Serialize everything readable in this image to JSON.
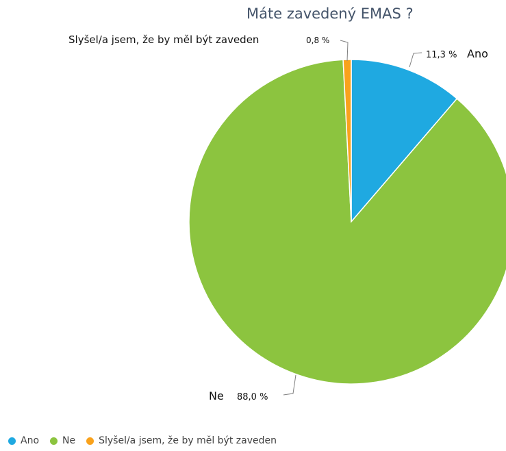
{
  "chart_data": {
    "type": "pie",
    "title": "Máte zavedený EMAS ?",
    "slices": [
      {
        "name": "Ano",
        "value": 11.3,
        "label": "11,3 %",
        "color": "#1FA9E1"
      },
      {
        "name": "Ne",
        "value": 88.0,
        "label": "88,0 %",
        "color": "#8CC43F"
      },
      {
        "name": "Slyšel/a jsem, že by měl být zaveden",
        "value": 0.8,
        "label": "0,8 %",
        "color": "#F9A21C"
      }
    ],
    "start_angle": "12 o'clock",
    "direction": "clockwise",
    "legend_position": "bottom-left"
  }
}
